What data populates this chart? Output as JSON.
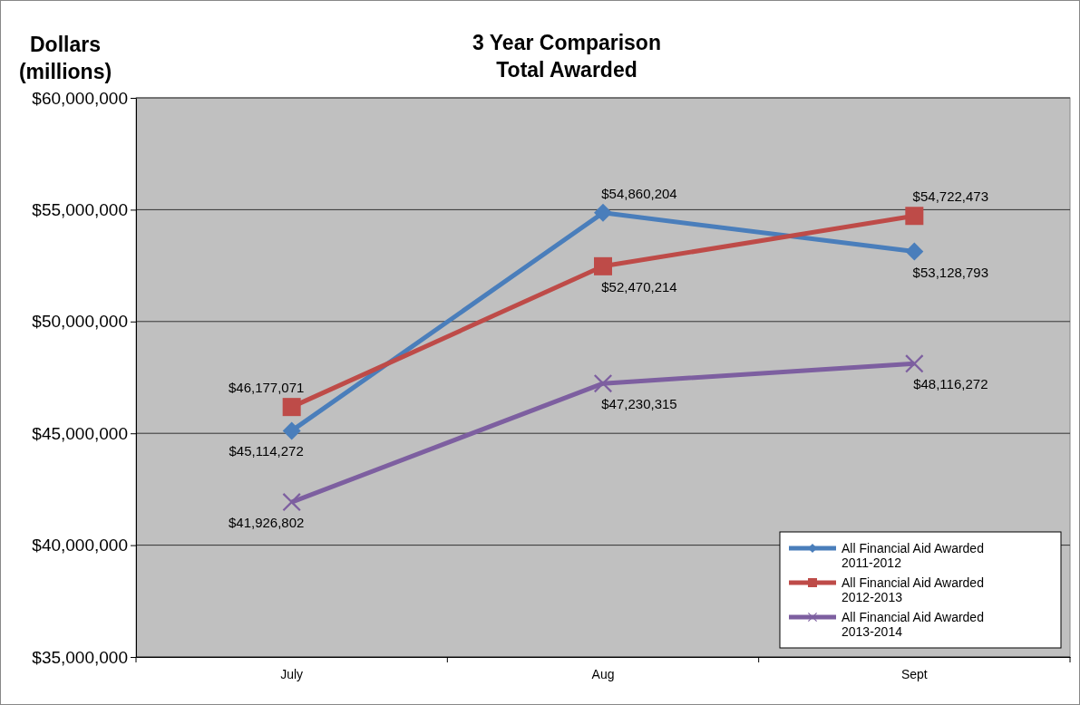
{
  "chart_data": {
    "type": "line",
    "title": "3 Year Comparison\nTotal Awarded",
    "ylabel": "Dollars\n(millions)",
    "categories": [
      "July",
      "Aug",
      "Sept"
    ],
    "series": [
      {
        "name": "All Financial Aid Awarded 2011-2012",
        "color": "#4a7ebb",
        "marker": "diamond",
        "values": [
          45114272,
          54860204,
          53128793
        ],
        "value_labels": [
          "$45,114,272",
          "$54,860,204",
          "$53,128,793"
        ]
      },
      {
        "name": "All Financial Aid Awarded 2012-2013",
        "color": "#be4b48",
        "marker": "square",
        "values": [
          46177071,
          52470214,
          54722473
        ],
        "value_labels": [
          "$46,177,071",
          "$52,470,214",
          "$54,722,473"
        ]
      },
      {
        "name": "All Financial Aid Awarded 2013-2014",
        "color": "#7d5fa0",
        "marker": "cross",
        "values": [
          41926802,
          47230315,
          48116272
        ],
        "value_labels": [
          "$41,926,802",
          "$47,230,315",
          "$48,116,272"
        ]
      }
    ],
    "ylim": [
      35000000,
      60000000
    ],
    "yticks": [
      {
        "value": 35000000,
        "label": "$35,000,000"
      },
      {
        "value": 40000000,
        "label": "$40,000,000"
      },
      {
        "value": 45000000,
        "label": "$45,000,000"
      },
      {
        "value": 50000000,
        "label": "$50,000,000"
      },
      {
        "value": 55000000,
        "label": "$55,000,000"
      },
      {
        "value": 60000000,
        "label": "$60,000,000"
      }
    ],
    "grid": "y",
    "legend": "bottom right",
    "line_style": "solid"
  }
}
